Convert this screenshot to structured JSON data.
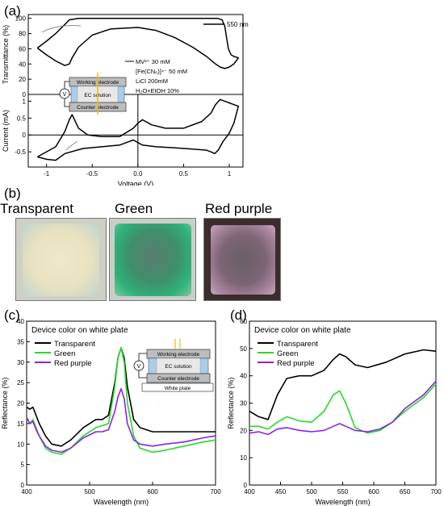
{
  "panels": {
    "a": "(a)",
    "b": "(b)",
    "c": "(c)",
    "d": "(d)"
  },
  "panel_a": {
    "legend_wavelength": "550 nm",
    "conditions": [
      "MV²⁺ 30 mM",
      "[Fe(CN₆)]⁴⁻ 50 mM",
      "LiCl 200mM",
      "H₂O+EtOH 10%"
    ],
    "device": {
      "top": "Working electrode",
      "middle": "EC solution",
      "bottom": "Counter electrode",
      "source": "V"
    }
  },
  "panel_b": {
    "titles": [
      "Transparent",
      "Green",
      "Red purple"
    ],
    "photo_colors": [
      "#e9e4c6",
      "#3aa572",
      "#8b6a7e"
    ]
  },
  "panel_c": {
    "device": {
      "top": "Working electrode",
      "middle": "EC solution",
      "bottom": "Counter electrode",
      "plate": "White plate",
      "source": "V"
    }
  },
  "chart_data": [
    {
      "type": "line",
      "title": "",
      "xlabel": "",
      "ylabel": "Transmittance (%)",
      "xlim": [
        -1.2,
        1.15
      ],
      "ylim": [
        0,
        105
      ],
      "yticks": [
        0,
        20,
        40,
        60,
        80,
        100
      ],
      "series": [
        {
          "name": "550 nm",
          "color": "#000000",
          "x": [
            -1.1,
            -1.0,
            -0.9,
            -0.8,
            -0.75,
            -0.65,
            -0.5,
            -0.3,
            -0.1,
            0.0,
            0.2,
            0.5,
            0.7,
            0.8,
            0.87,
            0.92,
            0.95,
            0.97,
            0.99,
            1.02,
            1.05,
            1.1,
            1.05,
            1.0,
            0.95,
            0.9,
            0.85,
            0.8,
            0.75,
            0.6,
            0.4,
            0.2,
            0.0,
            -0.3,
            -0.5,
            -0.65,
            -0.72,
            -0.75,
            -0.8,
            -0.9,
            -1.0,
            -1.1
          ],
          "y": [
            61,
            70,
            80,
            92,
            98,
            100,
            100,
            100,
            100,
            100,
            100,
            100,
            100,
            100,
            100,
            98,
            90,
            75,
            60,
            52,
            50,
            48,
            40,
            36,
            34,
            36,
            40,
            45,
            50,
            62,
            75,
            84,
            88,
            86,
            78,
            62,
            48,
            40,
            38,
            44,
            52,
            61
          ]
        }
      ]
    },
    {
      "type": "line",
      "title": "",
      "xlabel": "Voltage (V)",
      "ylabel": "Current (mA)",
      "xlim": [
        -1.2,
        1.15
      ],
      "ylim": [
        -0.95,
        1.2
      ],
      "xticks": [
        -1.0,
        -0.5,
        0.0,
        0.5,
        1.0
      ],
      "yticks": [
        -0.5,
        0,
        0.5,
        1
      ],
      "series": [
        {
          "name": "",
          "color": "#000000",
          "x": [
            -1.1,
            -0.9,
            -0.8,
            -0.75,
            -0.72,
            -0.65,
            -0.55,
            -0.4,
            -0.2,
            -0.05,
            0.0,
            0.05,
            0.15,
            0.3,
            0.5,
            0.7,
            0.8,
            0.85,
            0.9,
            1.0,
            1.1,
            1.05,
            1.0,
            0.93,
            0.88,
            0.84,
            0.8,
            0.75,
            0.6,
            0.4,
            0.2,
            0.05,
            -0.05,
            -0.1,
            -0.2,
            -0.4,
            -0.6,
            -0.8,
            -0.9,
            -1.0,
            -1.1
          ],
          "y": [
            -0.65,
            -0.35,
            0.1,
            0.45,
            0.6,
            0.2,
            0.0,
            -0.05,
            -0.05,
            0.2,
            0.35,
            0.45,
            0.3,
            0.2,
            0.2,
            0.4,
            0.65,
            0.9,
            1.05,
            0.95,
            0.85,
            0.35,
            0.05,
            -0.2,
            -0.45,
            -0.55,
            -0.5,
            -0.45,
            -0.42,
            -0.38,
            -0.35,
            -0.3,
            -0.15,
            -0.2,
            -0.3,
            -0.35,
            -0.4,
            -0.55,
            -0.75,
            -0.72,
            -0.65
          ]
        }
      ]
    },
    {
      "type": "line",
      "title": "Device color on white plate",
      "xlabel": "Wavelength (nm)",
      "ylabel": "Reflectance (%)",
      "xlim": [
        400,
        700
      ],
      "ylim": [
        0,
        40
      ],
      "xticks": [
        400,
        500,
        600,
        700
      ],
      "yticks": [
        0,
        5,
        10,
        15,
        20,
        25,
        30,
        35,
        40
      ],
      "legend": "top-left",
      "series": [
        {
          "name": "Transparent",
          "color": "#000000",
          "x": [
            400,
            405,
            410,
            415,
            420,
            430,
            440,
            455,
            470,
            490,
            510,
            520,
            530,
            540,
            545,
            550,
            555,
            560,
            570,
            580,
            600,
            620,
            650,
            680,
            700
          ],
          "y": [
            19,
            18.5,
            19,
            17,
            15,
            12,
            10,
            9.5,
            11,
            14,
            16,
            16,
            17,
            25,
            31,
            33.5,
            31,
            24,
            16,
            14,
            13,
            13,
            13,
            13,
            13
          ]
        },
        {
          "name": "Green",
          "color": "#22dd22",
          "x": [
            400,
            405,
            410,
            415,
            420,
            430,
            440,
            455,
            470,
            490,
            510,
            520,
            530,
            540,
            545,
            550,
            555,
            560,
            570,
            580,
            600,
            620,
            650,
            680,
            700
          ],
          "y": [
            16.5,
            15,
            16,
            14,
            12,
            9,
            8,
            7.5,
            9,
            12,
            14,
            14.5,
            15,
            24,
            31,
            33.5,
            30,
            20,
            12,
            9,
            8,
            8.5,
            9.5,
            10.5,
            11
          ]
        },
        {
          "name": "Red purple",
          "color": "#8822ee",
          "x": [
            400,
            405,
            410,
            415,
            420,
            430,
            440,
            455,
            470,
            490,
            510,
            520,
            530,
            540,
            545,
            550,
            555,
            560,
            570,
            580,
            600,
            620,
            650,
            680,
            700
          ],
          "y": [
            16.5,
            15,
            15.5,
            13.5,
            12,
            9.5,
            8.5,
            8,
            9,
            11.5,
            13,
            13,
            13.5,
            18,
            21.5,
            23.5,
            21,
            15,
            11,
            10,
            9.5,
            10,
            10.5,
            11.5,
            12
          ]
        }
      ]
    },
    {
      "type": "line",
      "title": "Device color on white plate",
      "xlabel": "Wavelength (nm)",
      "ylabel": "Reflectance (%)",
      "xlim": [
        400,
        700
      ],
      "ylim": [
        0,
        60
      ],
      "xticks": [
        400,
        450,
        500,
        550,
        600,
        650,
        700
      ],
      "yticks": [
        0,
        10,
        20,
        30,
        40,
        50,
        60
      ],
      "legend": "top-left",
      "series": [
        {
          "name": "Transparent",
          "color": "#000000",
          "x": [
            400,
            415,
            430,
            445,
            460,
            480,
            500,
            520,
            535,
            545,
            555,
            570,
            590,
            620,
            650,
            680,
            700
          ],
          "y": [
            27,
            25,
            24,
            33,
            39,
            40,
            40,
            42,
            46,
            48,
            47,
            44,
            43,
            45,
            48,
            49.5,
            49
          ]
        },
        {
          "name": "Green",
          "color": "#22dd22",
          "x": [
            400,
            415,
            430,
            445,
            460,
            480,
            500,
            520,
            535,
            545,
            555,
            570,
            590,
            610,
            630,
            650,
            680,
            700
          ],
          "y": [
            21.5,
            21.5,
            20.5,
            23,
            25,
            23.5,
            23,
            27,
            33,
            34.5,
            30,
            21,
            19,
            20,
            23,
            27,
            32,
            37
          ]
        },
        {
          "name": "Red purple",
          "color": "#8822ee",
          "x": [
            400,
            415,
            430,
            445,
            460,
            480,
            500,
            520,
            535,
            545,
            555,
            570,
            590,
            610,
            630,
            650,
            680,
            700
          ],
          "y": [
            19,
            19.5,
            18.5,
            20.5,
            21,
            20,
            19.5,
            20,
            21.5,
            22.5,
            21.5,
            20,
            19.5,
            20.5,
            23,
            28,
            33,
            38
          ]
        }
      ]
    }
  ]
}
